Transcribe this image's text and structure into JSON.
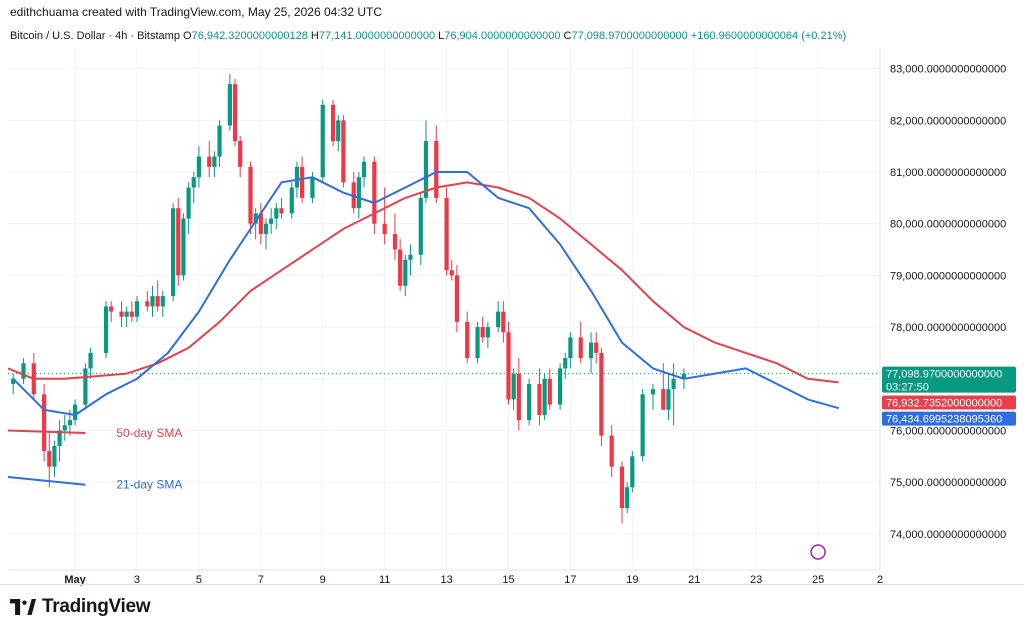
{
  "header": {
    "credit": "edithchuama created with TradingView.com, May 25, 2026 04:32 UTC"
  },
  "legend": {
    "symbol": "Bitcoin / U.S. Dollar · 4h · Bitstamp",
    "open_label": "O",
    "open": "76,942.3200000000128",
    "high_label": "H",
    "high": "77,141.0000000000000",
    "low_label": "L",
    "low": "76,904.0000000000000",
    "close_label": "C",
    "close": "77,098.9700000000000",
    "change": "+160.9600000000064 (+0.21%)"
  },
  "colors": {
    "up": "#089981",
    "down": "#f23645",
    "sma50": "#e5404b",
    "sma21": "#2f6de0",
    "axis_text": "#131722",
    "grid": "#f0f3fa"
  },
  "price_tags": {
    "last": "77,098.9700000000000",
    "countdown": "03:27:50",
    "sma50": "76,932.7352000000000",
    "sma21": "76,434.6995238095360"
  },
  "annotations": {
    "sma50_label": "50-day SMA",
    "sma21_label": "21-day SMA"
  },
  "footer": {
    "brand": "TradingView"
  },
  "chart_data": {
    "type": "candlestick",
    "timeframe": "4h",
    "ylim": [
      73300,
      83400
    ],
    "y_ticks": [
      "83,000.0000000000000",
      "82,000.0000000000000",
      "81,000.0000000000000",
      "80,000.0000000000000",
      "79,000.0000000000000",
      "78,000.0000000000000",
      "77,000.0000000000000",
      "76,000.0000000000000",
      "75,000.0000000000000",
      "74,000.0000000000000"
    ],
    "y_tick_values": [
      83000,
      82000,
      81000,
      80000,
      79000,
      78000,
      77000,
      76000,
      75000,
      74000
    ],
    "x_ticks": [
      "May",
      "3",
      "5",
      "7",
      "9",
      "11",
      "13",
      "15",
      "17",
      "19",
      "21",
      "23",
      "25",
      "2"
    ],
    "x_tick_index": [
      12,
      24,
      36,
      48,
      60,
      72,
      84,
      96,
      108,
      120,
      132,
      144,
      156,
      168
    ],
    "candles": [
      [
        76900,
        77100,
        76700,
        77000
      ],
      [
        77000,
        77400,
        76900,
        77300
      ],
      [
        77300,
        77500,
        76600,
        76700
      ],
      [
        76700,
        76900,
        75400,
        75600
      ],
      [
        75600,
        76000,
        74900,
        75300
      ],
      [
        75300,
        75800,
        75100,
        75700
      ],
      [
        75700,
        76200,
        75400,
        76000
      ],
      [
        76000,
        76300,
        75800,
        76100
      ],
      [
        76100,
        76400,
        75900,
        76200
      ],
      [
        76200,
        76600,
        76100,
        76500
      ],
      [
        76500,
        77300,
        76400,
        77200
      ],
      [
        77200,
        77600,
        77000,
        77500
      ],
      [
        77500,
        78500,
        77400,
        78400
      ],
      [
        78400,
        78500,
        78100,
        78300
      ],
      [
        78300,
        78500,
        78000,
        78200
      ],
      [
        78200,
        78400,
        78000,
        78300
      ],
      [
        78300,
        78500,
        78100,
        78200
      ],
      [
        78200,
        78600,
        78100,
        78500
      ],
      [
        78500,
        78700,
        78300,
        78400
      ],
      [
        78400,
        78800,
        78200,
        78600
      ],
      [
        78600,
        78900,
        78300,
        78400
      ],
      [
        78400,
        78700,
        78200,
        78600
      ],
      [
        78600,
        80400,
        78500,
        80300
      ],
      [
        80300,
        80500,
        78800,
        79000
      ],
      [
        79000,
        80200,
        78900,
        80100
      ],
      [
        80100,
        80800,
        79800,
        80700
      ],
      [
        80700,
        81000,
        80400,
        80900
      ],
      [
        80900,
        81500,
        80700,
        81300
      ],
      [
        81300,
        81600,
        80900,
        81100
      ],
      [
        81100,
        81400,
        80900,
        81300
      ],
      [
        81300,
        82000,
        81100,
        81900
      ],
      [
        81900,
        82900,
        81800,
        82700
      ],
      [
        82700,
        82800,
        81500,
        81600
      ],
      [
        81600,
        81700,
        80900,
        81100
      ],
      [
        81100,
        81200,
        79800,
        80000
      ],
      [
        80000,
        80300,
        79700,
        80200
      ],
      [
        80200,
        80400,
        79600,
        79800
      ],
      [
        79800,
        80100,
        79500,
        80000
      ],
      [
        80000,
        80300,
        79800,
        80100
      ],
      [
        80100,
        80400,
        79900,
        80300
      ],
      [
        80300,
        80500,
        80100,
        80200
      ],
      [
        80200,
        80800,
        80100,
        80700
      ],
      [
        80700,
        81200,
        80500,
        81100
      ],
      [
        81100,
        81300,
        80400,
        80500
      ],
      [
        80500,
        81000,
        80400,
        80900
      ],
      [
        80900,
        82400,
        80800,
        82300
      ],
      [
        82300,
        82400,
        81500,
        81600
      ],
      [
        81600,
        82100,
        81400,
        82000
      ],
      [
        82000,
        82100,
        80700,
        80800
      ],
      [
        80800,
        81000,
        80200,
        80300
      ],
      [
        80300,
        81000,
        80100,
        80900
      ],
      [
        80900,
        81300,
        80700,
        81200
      ],
      [
        81200,
        81300,
        79800,
        80000
      ],
      [
        80000,
        80700,
        79600,
        79800
      ],
      [
        79800,
        80200,
        79300,
        79500
      ],
      [
        79500,
        79700,
        78700,
        78800
      ],
      [
        78800,
        79400,
        78600,
        79300
      ],
      [
        79300,
        79600,
        79000,
        79400
      ],
      [
        79400,
        80600,
        79200,
        80500
      ],
      [
        80500,
        82000,
        80400,
        81600
      ],
      [
        81600,
        81900,
        80400,
        80500
      ],
      [
        80500,
        80700,
        79000,
        79100
      ],
      [
        79100,
        79300,
        78900,
        79000
      ],
      [
        79000,
        79200,
        77900,
        78100
      ],
      [
        78100,
        78300,
        77300,
        77400
      ],
      [
        77400,
        78100,
        77300,
        78000
      ],
      [
        78000,
        78200,
        77700,
        77800
      ],
      [
        77800,
        78100,
        77600,
        78000
      ],
      [
        78000,
        78500,
        77900,
        78300
      ],
      [
        78300,
        78500,
        77700,
        77900
      ],
      [
        77900,
        78100,
        76500,
        76600
      ],
      [
        76600,
        77200,
        76400,
        77100
      ],
      [
        77100,
        77400,
        76000,
        76200
      ],
      [
        76200,
        77000,
        76100,
        76900
      ],
      [
        76900,
        77200,
        76100,
        76300
      ],
      [
        76300,
        77100,
        76200,
        77000
      ],
      [
        77000,
        77200,
        76400,
        76500
      ],
      [
        76500,
        77300,
        76400,
        77200
      ],
      [
        77200,
        77500,
        77000,
        77400
      ],
      [
        77400,
        77900,
        77200,
        77800
      ],
      [
        77800,
        78100,
        77300,
        77400
      ],
      [
        77400,
        77900,
        77100,
        77700
      ],
      [
        77700,
        77900,
        77300,
        77500
      ],
      [
        77500,
        77600,
        75700,
        75900
      ],
      [
        75900,
        76100,
        75100,
        75300
      ],
      [
        75300,
        75400,
        74200,
        74500
      ],
      [
        74500,
        75000,
        74400,
        74900
      ],
      [
        74900,
        75600,
        74800,
        75500
      ],
      [
        75500,
        76800,
        75400,
        76700
      ],
      [
        76700,
        76900,
        76400,
        76800
      ],
      [
        76800,
        77300,
        76500,
        76400
      ],
      [
        76400,
        77100,
        76200,
        76800
      ],
      [
        76800,
        77300,
        76100,
        77000
      ],
      [
        77000,
        77200,
        76800,
        77100
      ]
    ],
    "candle_x_index": [
      0,
      2,
      4,
      6,
      7,
      8,
      9,
      10,
      11,
      12,
      14,
      15,
      18,
      19,
      21,
      22,
      23,
      24,
      26,
      27,
      28,
      29,
      31,
      32,
      33,
      34,
      35,
      36,
      38,
      39,
      40,
      42,
      43,
      44,
      46,
      47,
      48,
      49,
      50,
      51,
      52,
      54,
      55,
      56,
      58,
      60,
      62,
      63,
      64,
      66,
      67,
      68,
      70,
      72,
      74,
      75,
      76,
      77,
      79,
      80,
      82,
      84,
      85,
      86,
      88,
      90,
      91,
      92,
      94,
      95,
      96,
      97,
      98,
      100,
      102,
      103,
      104,
      106,
      107,
      108,
      110,
      112,
      113,
      114,
      116,
      118,
      119,
      120,
      122,
      124,
      126,
      127,
      128,
      130
    ],
    "series": [
      {
        "name": "50-day SMA",
        "color": "#e5404b",
        "points": [
          [
            -1,
            77200
          ],
          [
            4,
            77000
          ],
          [
            10,
            77000
          ],
          [
            16,
            77050
          ],
          [
            22,
            77100
          ],
          [
            28,
            77300
          ],
          [
            34,
            77600
          ],
          [
            40,
            78100
          ],
          [
            46,
            78700
          ],
          [
            52,
            79100
          ],
          [
            58,
            79500
          ],
          [
            64,
            79900
          ],
          [
            70,
            80200
          ],
          [
            76,
            80500
          ],
          [
            82,
            80700
          ],
          [
            88,
            80800
          ],
          [
            94,
            80700
          ],
          [
            100,
            80500
          ],
          [
            106,
            80100
          ],
          [
            112,
            79600
          ],
          [
            118,
            79100
          ],
          [
            124,
            78500
          ],
          [
            130,
            78000
          ],
          [
            136,
            77700
          ],
          [
            142,
            77500
          ],
          [
            148,
            77300
          ],
          [
            154,
            77000
          ],
          [
            160,
            76930
          ]
        ],
        "segment": [
          [
            -1,
            76000
          ],
          [
            14,
            75950
          ]
        ]
      },
      {
        "name": "21-day SMA",
        "color": "#2f6de0",
        "points": [
          [
            0,
            77000
          ],
          [
            6,
            76400
          ],
          [
            12,
            76300
          ],
          [
            18,
            76700
          ],
          [
            24,
            77000
          ],
          [
            30,
            77500
          ],
          [
            36,
            78300
          ],
          [
            42,
            79300
          ],
          [
            48,
            80200
          ],
          [
            52,
            80800
          ],
          [
            58,
            80900
          ],
          [
            64,
            80600
          ],
          [
            70,
            80400
          ],
          [
            76,
            80700
          ],
          [
            82,
            81000
          ],
          [
            88,
            81000
          ],
          [
            94,
            80500
          ],
          [
            100,
            80300
          ],
          [
            106,
            79600
          ],
          [
            112,
            78700
          ],
          [
            118,
            77700
          ],
          [
            124,
            77200
          ],
          [
            130,
            77000
          ],
          [
            136,
            77100
          ],
          [
            142,
            77200
          ],
          [
            148,
            76900
          ],
          [
            154,
            76600
          ],
          [
            160,
            76430
          ]
        ],
        "segment": [
          [
            -1,
            75100
          ],
          [
            14,
            74950
          ]
        ]
      }
    ]
  }
}
